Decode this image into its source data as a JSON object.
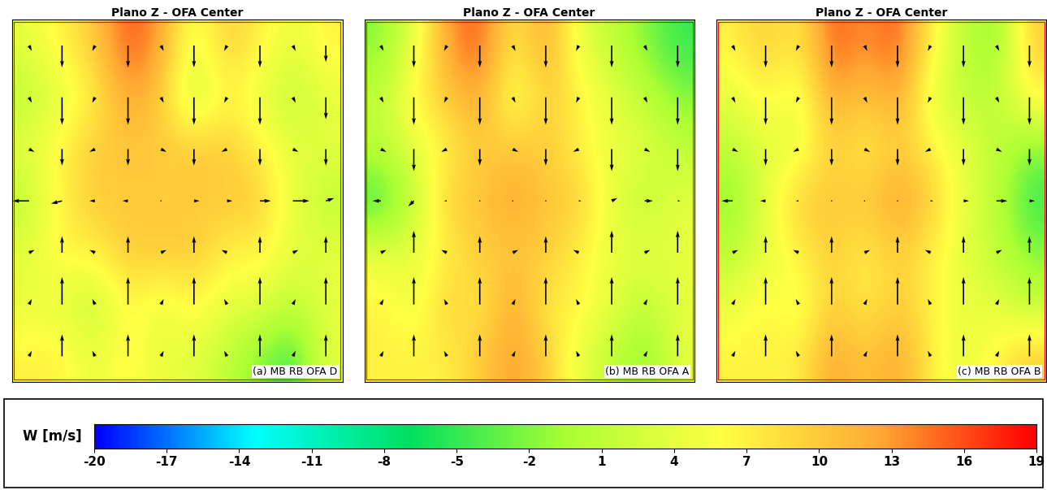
{
  "chart_data": [
    {
      "type": "heatmap",
      "title": "Plano Z - OFA Center",
      "label": "(a) MB RB OFA D",
      "tick_labels": false,
      "cells": [
        [
          4,
          7,
          10,
          16,
          13,
          4,
          10,
          7,
          4,
          7
        ],
        [
          1,
          4,
          7,
          13,
          10,
          1,
          7,
          4,
          1,
          4
        ],
        [
          4,
          7,
          10,
          10,
          10,
          10,
          10,
          7,
          4,
          4
        ],
        [
          1,
          7,
          10,
          10,
          10,
          10,
          10,
          10,
          4,
          1
        ],
        [
          4,
          7,
          7,
          10,
          10,
          10,
          7,
          7,
          4,
          4
        ],
        [
          4,
          4,
          1,
          7,
          4,
          7,
          4,
          4,
          1,
          4
        ],
        [
          7,
          7,
          4,
          7,
          4,
          4,
          1,
          -2,
          -5,
          4
        ]
      ],
      "u": [
        [
          1,
          0,
          -1,
          0,
          1,
          0,
          -1,
          0,
          1,
          0
        ],
        [
          1,
          0,
          -1,
          0,
          1,
          0,
          -1,
          0,
          1,
          0
        ],
        [
          2,
          0,
          -2,
          0,
          2,
          0,
          -2,
          0,
          2,
          0
        ],
        [
          -6,
          -4,
          -2,
          -2,
          0,
          2,
          2,
          4,
          6,
          3
        ],
        [
          2,
          0,
          -2,
          0,
          2,
          0,
          -2,
          0,
          2,
          0
        ],
        [
          1,
          0,
          -1,
          0,
          1,
          0,
          -1,
          0,
          1,
          0
        ],
        [
          1,
          0,
          -1,
          0,
          1,
          0,
          -1,
          0,
          1,
          0
        ]
      ],
      "v": [
        [
          -2,
          -8,
          -2,
          -8,
          -2,
          -8,
          -2,
          -8,
          -2,
          -6
        ],
        [
          -2,
          -10,
          -2,
          -10,
          -2,
          -10,
          -2,
          -10,
          -2,
          -8
        ],
        [
          -1,
          -6,
          -1,
          -6,
          -1,
          -6,
          -1,
          -6,
          -1,
          -6
        ],
        [
          0,
          -1,
          0,
          0,
          0,
          0,
          0,
          0,
          0,
          1
        ],
        [
          1,
          6,
          1,
          6,
          1,
          6,
          1,
          6,
          1,
          6
        ],
        [
          2,
          10,
          2,
          10,
          2,
          10,
          2,
          10,
          2,
          10
        ],
        [
          2,
          8,
          2,
          8,
          2,
          8,
          2,
          8,
          2,
          8
        ]
      ]
    },
    {
      "type": "heatmap",
      "title": "Plano Z - OFA Center",
      "label": "(b) MB RB OFA A",
      "tick_labels": false,
      "cells": [
        [
          -2,
          4,
          13,
          16,
          7,
          13,
          4,
          1,
          -2,
          -5
        ],
        [
          1,
          7,
          10,
          13,
          4,
          10,
          7,
          4,
          1,
          -2
        ],
        [
          1,
          4,
          7,
          10,
          10,
          10,
          7,
          4,
          4,
          1
        ],
        [
          -5,
          1,
          10,
          10,
          13,
          10,
          10,
          4,
          1,
          4
        ],
        [
          4,
          4,
          7,
          10,
          10,
          10,
          7,
          4,
          4,
          4
        ],
        [
          7,
          4,
          10,
          7,
          13,
          7,
          7,
          4,
          1,
          4
        ],
        [
          7,
          7,
          7,
          10,
          13,
          10,
          4,
          1,
          -2,
          4
        ]
      ],
      "u": [
        [
          1,
          0,
          -1,
          0,
          1,
          0,
          -1,
          0,
          1,
          0
        ],
        [
          1,
          0,
          -1,
          0,
          1,
          0,
          -1,
          0,
          1,
          0
        ],
        [
          2,
          0,
          -2,
          0,
          2,
          0,
          -2,
          0,
          2,
          0
        ],
        [
          -3,
          -2,
          -1,
          0,
          0,
          0,
          1,
          2,
          3,
          1
        ],
        [
          2,
          0,
          -2,
          0,
          2,
          0,
          -2,
          0,
          2,
          0
        ],
        [
          1,
          0,
          -1,
          0,
          1,
          0,
          -1,
          0,
          1,
          0
        ],
        [
          1,
          0,
          -1,
          0,
          1,
          0,
          -1,
          0,
          1,
          0
        ]
      ],
      "v": [
        [
          -2,
          -8,
          -2,
          -8,
          -2,
          -8,
          -2,
          -8,
          -2,
          -8
        ],
        [
          -2,
          -10,
          -2,
          -10,
          -2,
          -10,
          -2,
          -10,
          -2,
          -10
        ],
        [
          -1,
          -8,
          -1,
          -6,
          -1,
          -6,
          -1,
          -8,
          -1,
          -8
        ],
        [
          0,
          -2,
          0,
          0,
          0,
          0,
          0,
          1,
          0,
          0
        ],
        [
          1,
          8,
          1,
          6,
          1,
          6,
          1,
          8,
          1,
          8
        ],
        [
          2,
          10,
          2,
          10,
          2,
          10,
          2,
          10,
          2,
          10
        ],
        [
          2,
          8,
          2,
          8,
          2,
          8,
          2,
          8,
          2,
          8
        ]
      ]
    },
    {
      "type": "heatmap",
      "title": "Plano Z - OFA Center",
      "label": "(c) MB RB OFA B",
      "tick_labels": false,
      "cells": [
        [
          7,
          10,
          7,
          16,
          13,
          16,
          7,
          1,
          -2,
          10
        ],
        [
          4,
          7,
          4,
          13,
          10,
          13,
          4,
          1,
          1,
          7
        ],
        [
          1,
          4,
          4,
          10,
          7,
          10,
          7,
          4,
          1,
          -2
        ],
        [
          -2,
          4,
          10,
          10,
          10,
          13,
          10,
          4,
          1,
          -5
        ],
        [
          1,
          4,
          7,
          10,
          7,
          10,
          7,
          4,
          1,
          -2
        ],
        [
          4,
          7,
          4,
          10,
          7,
          10,
          7,
          4,
          4,
          1
        ],
        [
          7,
          7,
          7,
          13,
          10,
          13,
          7,
          4,
          7,
          10
        ]
      ],
      "u": [
        [
          1,
          0,
          -1,
          0,
          1,
          0,
          -1,
          0,
          1,
          0
        ],
        [
          1,
          0,
          -1,
          0,
          1,
          0,
          -1,
          0,
          1,
          0
        ],
        [
          2,
          0,
          -2,
          0,
          2,
          0,
          -2,
          0,
          2,
          0
        ],
        [
          -4,
          -2,
          -1,
          0,
          0,
          0,
          1,
          2,
          4,
          2
        ],
        [
          2,
          0,
          -2,
          0,
          2,
          0,
          -2,
          0,
          2,
          0
        ],
        [
          1,
          0,
          -1,
          0,
          1,
          0,
          -1,
          0,
          1,
          0
        ],
        [
          1,
          0,
          -1,
          0,
          1,
          0,
          -1,
          0,
          1,
          0
        ]
      ],
      "v": [
        [
          -2,
          -8,
          -2,
          -8,
          -2,
          -8,
          -2,
          -8,
          -2,
          -8
        ],
        [
          -2,
          -10,
          -2,
          -10,
          -2,
          -10,
          -2,
          -10,
          -2,
          -10
        ],
        [
          -1,
          -6,
          -1,
          -6,
          -1,
          -6,
          -1,
          -6,
          -1,
          -6
        ],
        [
          0,
          0,
          0,
          0,
          0,
          0,
          0,
          0,
          0,
          0
        ],
        [
          1,
          6,
          1,
          6,
          1,
          6,
          1,
          6,
          1,
          6
        ],
        [
          2,
          10,
          2,
          10,
          2,
          10,
          2,
          10,
          2,
          10
        ],
        [
          2,
          8,
          2,
          8,
          2,
          8,
          2,
          8,
          2,
          8
        ]
      ]
    }
  ],
  "colorbar": {
    "label": "W [m/s]",
    "range": [
      -20,
      19
    ],
    "ticks": [
      -20,
      -17,
      -14,
      -11,
      -8,
      -5,
      -2,
      1,
      4,
      7,
      10,
      13,
      16,
      19
    ]
  }
}
